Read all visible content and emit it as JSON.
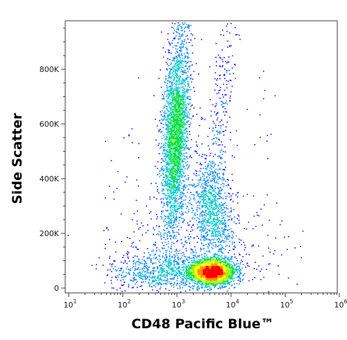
{
  "chart_data": {
    "type": "scatter",
    "subtype": "flow-cytometry-density-dot-plot",
    "title": "",
    "xlabel": "CD48 Pacific Blue™",
    "ylabel": "Side Scatter",
    "x_scale": "log",
    "xlim": [
      10,
      1000000
    ],
    "x_ticks": [
      {
        "base": "10",
        "exp": "1",
        "value": 10
      },
      {
        "base": "10",
        "exp": "2",
        "value": 100
      },
      {
        "base": "10",
        "exp": "3",
        "value": 1000
      },
      {
        "base": "10",
        "exp": "4",
        "value": 10000
      },
      {
        "base": "10",
        "exp": "5",
        "value": 100000
      },
      {
        "base": "10",
        "exp": "6",
        "value": 1000000
      }
    ],
    "y_scale": "linear",
    "ylim": [
      0,
      1000000
    ],
    "y_ticks": [
      {
        "label": "0",
        "value": 0
      },
      {
        "label": "200K",
        "value": 200000
      },
      {
        "label": "400K",
        "value": 400000
      },
      {
        "label": "600K",
        "value": 600000
      },
      {
        "label": "800K",
        "value": 800000
      }
    ],
    "grid": false,
    "legend": "none",
    "color_scale": [
      "#0000ff",
      "#0080ff",
      "#00c8c8",
      "#00e040",
      "#b0f000",
      "#ffff00",
      "#ff9000",
      "#ff0000"
    ],
    "populations": [
      {
        "center_x": 1000,
        "center_y": 560000,
        "peak_density": 0.9
      },
      {
        "center_x": 5500,
        "center_y": 65000,
        "peak_density": 1.0
      },
      {
        "center_x": 4500,
        "center_y": 280000,
        "peak_density": 0.35
      },
      {
        "center_x": 900,
        "center_y": 60000,
        "peak_density": 0.25
      }
    ]
  }
}
